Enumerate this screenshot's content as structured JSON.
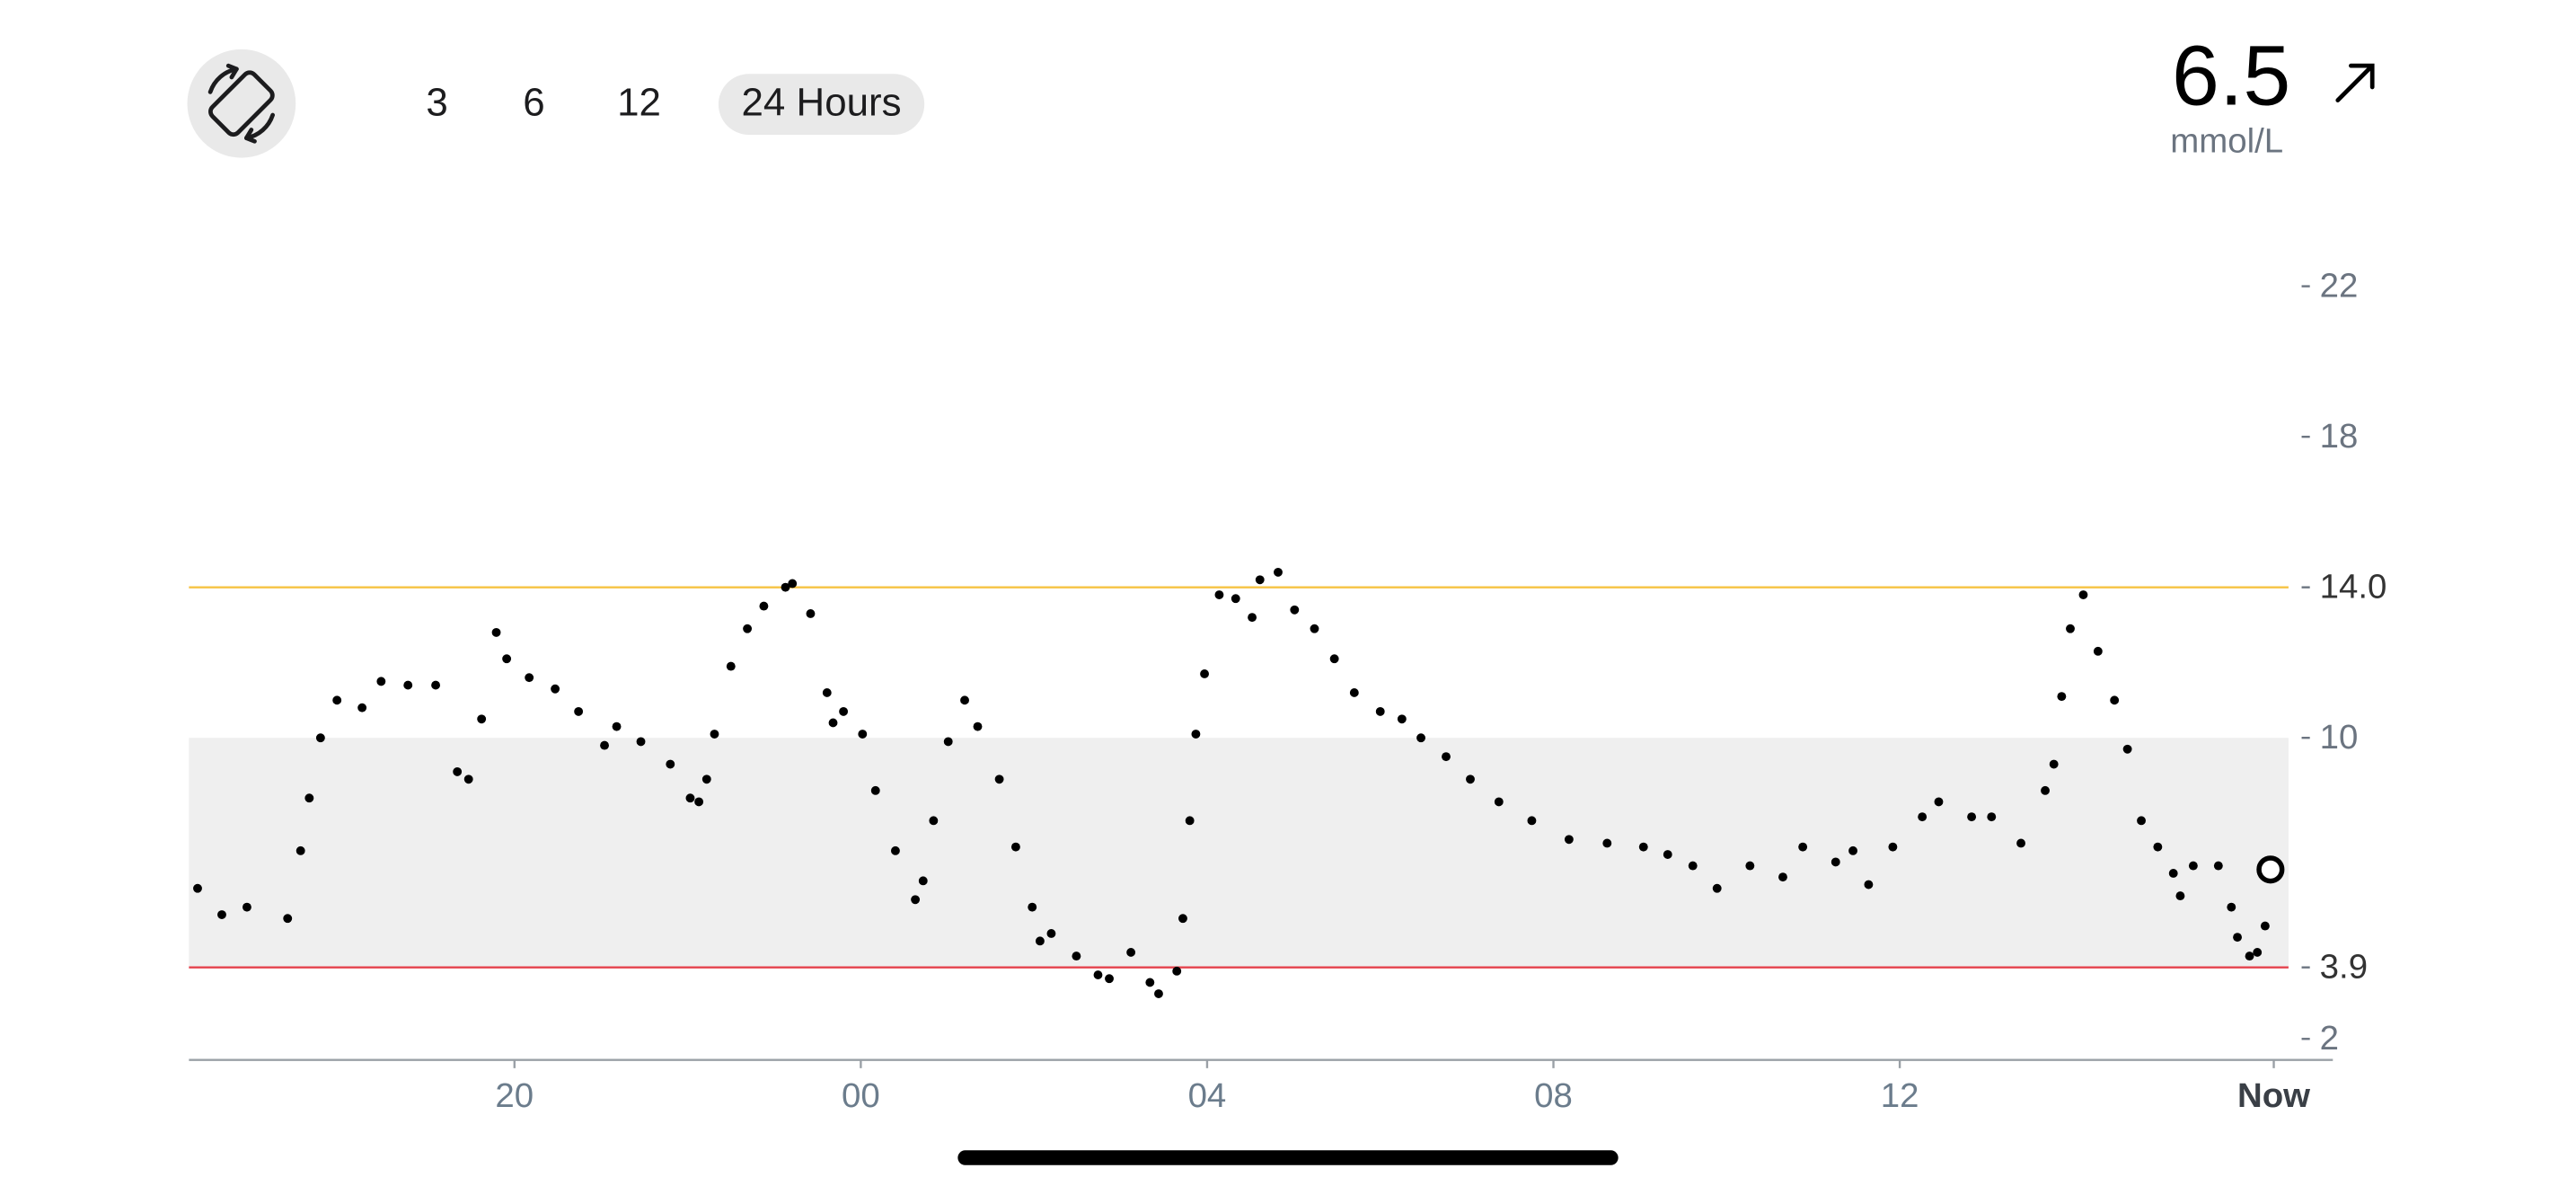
{
  "controls": {
    "ranges": [
      "3",
      "6",
      "12",
      "24 Hours"
    ],
    "selected_index": 3
  },
  "current": {
    "value": 6.5,
    "unit": "mmol/L"
  },
  "chart_data": {
    "type": "scatter",
    "color": "#000000",
    "x": [
      16.34,
      16.62,
      16.91,
      17.38,
      17.53,
      17.63,
      17.76,
      17.95,
      18.24,
      18.46,
      18.77,
      19.09,
      19.34,
      19.47,
      19.62,
      19.79,
      19.91,
      20.17,
      20.47,
      20.74,
      21.04,
      21.18,
      21.46,
      21.8,
      22.03,
      22.13,
      22.22,
      22.31,
      22.5,
      22.69,
      22.88,
      23.13,
      23.21,
      23.42,
      23.61,
      23.68,
      23.8,
      24.02,
      24.17,
      24.4,
      24.63,
      24.72,
      24.84,
      25.01,
      25.2,
      25.35,
      25.6,
      25.79,
      25.98,
      26.07,
      26.2,
      26.49,
      26.74,
      26.87,
      27.12,
      27.34,
      27.44,
      27.65,
      27.72,
      27.8,
      27.87,
      27.97,
      28.14,
      28.33,
      28.52,
      28.61,
      28.82,
      29.01,
      29.24,
      29.47,
      29.7,
      30.0,
      30.25,
      30.47,
      30.76,
      31.04,
      31.37,
      31.75,
      32.18,
      32.62,
      33.04,
      33.32,
      33.61,
      33.89,
      34.27,
      34.65,
      34.88,
      35.26,
      35.46,
      35.64,
      35.92,
      36.26,
      36.45,
      36.83,
      37.06,
      37.4,
      37.68,
      37.78,
      37.87,
      37.97,
      38.12,
      38.29,
      38.48,
      38.63,
      38.79,
      38.98,
      39.16,
      39.24,
      39.39,
      39.68,
      39.83,
      39.9,
      40.04,
      40.13,
      40.22
    ],
    "values": [
      6.0,
      5.3,
      5.5,
      5.2,
      7.0,
      8.4,
      10.0,
      11.0,
      10.8,
      11.5,
      11.4,
      11.4,
      9.1,
      8.9,
      10.5,
      12.8,
      12.1,
      11.6,
      11.3,
      10.7,
      9.8,
      10.3,
      9.9,
      9.3,
      8.4,
      8.3,
      8.9,
      10.1,
      11.9,
      12.9,
      13.5,
      14.0,
      14.1,
      13.3,
      11.2,
      10.4,
      10.7,
      10.1,
      8.6,
      7.0,
      5.7,
      6.2,
      7.8,
      9.9,
      11.0,
      10.3,
      8.9,
      7.1,
      5.5,
      4.6,
      4.8,
      4.2,
      3.7,
      3.6,
      4.3,
      3.5,
      3.2,
      3.8,
      5.2,
      7.8,
      10.1,
      11.7,
      13.8,
      13.7,
      13.2,
      14.2,
      14.4,
      13.4,
      12.9,
      12.1,
      11.2,
      10.7,
      10.5,
      10.0,
      9.5,
      8.9,
      8.3,
      7.8,
      7.3,
      7.2,
      7.1,
      6.9,
      6.6,
      6.0,
      6.6,
      6.3,
      7.1,
      6.7,
      7.0,
      6.1,
      7.1,
      7.9,
      8.3,
      7.9,
      7.9,
      7.2,
      8.6,
      9.3,
      11.1,
      12.9,
      13.8,
      12.3,
      11.0,
      9.7,
      7.8,
      7.1,
      6.4,
      5.8,
      6.6,
      6.6,
      5.5,
      4.7,
      4.2,
      4.3,
      5.0
    ],
    "xlim": [
      16.24,
      40.49
    ],
    "xticks": [
      {
        "value": 20,
        "label": "20"
      },
      {
        "value": 24,
        "label": "00"
      },
      {
        "value": 28,
        "label": "04"
      },
      {
        "value": 32,
        "label": "08"
      },
      {
        "value": 36,
        "label": "12"
      },
      {
        "value": 40.32,
        "label": "Now"
      }
    ],
    "ylim": [
      1.44,
      23.93
    ],
    "yticks": [
      22,
      18,
      {
        "value": 14,
        "label": "14.0"
      },
      10,
      3.9,
      2
    ],
    "target_range": [
      3.9,
      10
    ],
    "target_color": "#efefef",
    "high_threshold": 14,
    "high_color": "#f6c343",
    "low_threshold": 3.9,
    "low_color": "#e5434d"
  }
}
